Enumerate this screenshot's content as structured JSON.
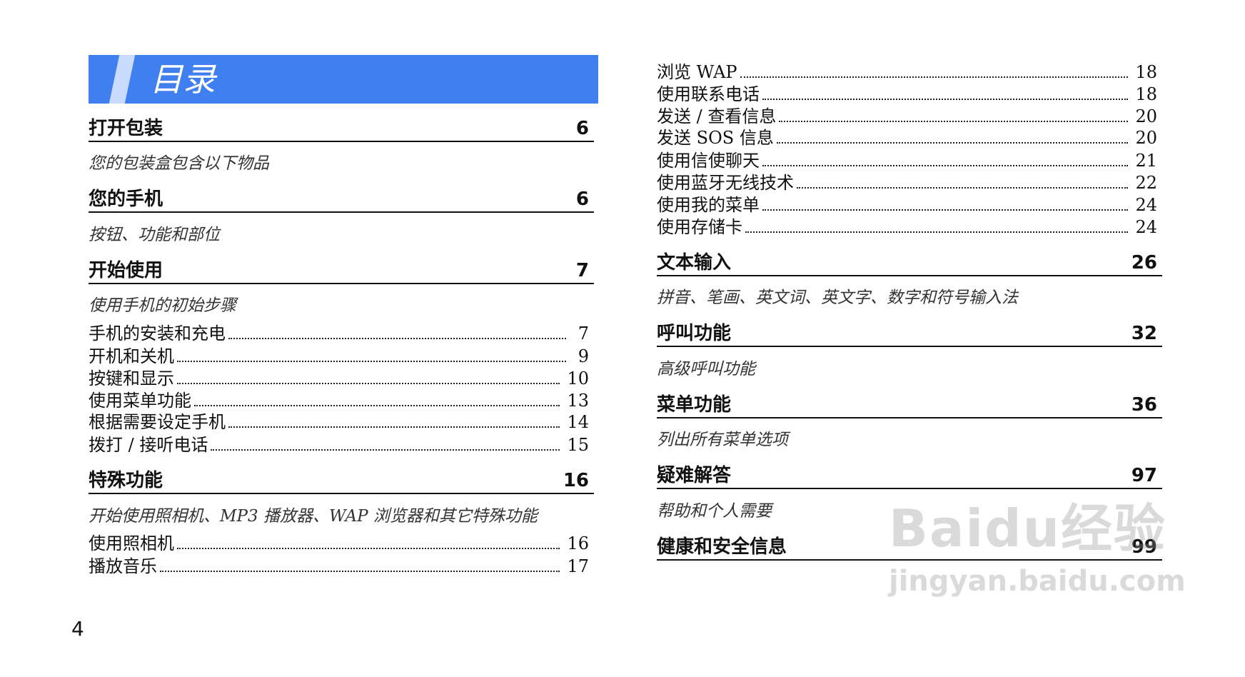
{
  "banner": {
    "title": "目录",
    "color": "#3f7ff0"
  },
  "left": [
    {
      "type": "head",
      "label": "打开包装",
      "page": "6"
    },
    {
      "type": "ital",
      "label": "您的包装盒包含以下物品"
    },
    {
      "type": "head",
      "label": "您的手机",
      "page": "6"
    },
    {
      "type": "ital",
      "label": "按钮、功能和部位"
    },
    {
      "type": "head",
      "label": "开始使用",
      "page": "7"
    },
    {
      "type": "ital",
      "label": "使用手机的初始步骤"
    },
    {
      "type": "entry",
      "label": "手机的安装和充电",
      "page": "7"
    },
    {
      "type": "entry",
      "label": "开机和关机",
      "page": "9"
    },
    {
      "type": "entry",
      "label": "按键和显示",
      "page": "10"
    },
    {
      "type": "entry",
      "label": "使用菜单功能",
      "page": "13"
    },
    {
      "type": "entry",
      "label": "根据需要设定手机",
      "page": "14"
    },
    {
      "type": "entry",
      "label": "拨打 / 接听电话",
      "page": "15"
    },
    {
      "type": "head",
      "label": "特殊功能",
      "page": "16"
    },
    {
      "type": "ital",
      "label": "开始使用照相机、MP3 播放器、WAP 浏览器和其它特殊功能"
    },
    {
      "type": "entry",
      "label": "使用照相机",
      "page": "16"
    },
    {
      "type": "entry",
      "label": "播放音乐",
      "page": "17"
    }
  ],
  "right": [
    {
      "type": "entry",
      "label": "浏览 WAP",
      "page": "18"
    },
    {
      "type": "entry",
      "label": "使用联系电话",
      "page": "18"
    },
    {
      "type": "entry",
      "label": "发送 / 查看信息",
      "page": "20"
    },
    {
      "type": "entry",
      "label": "发送 SOS 信息",
      "page": "20"
    },
    {
      "type": "entry",
      "label": "使用信使聊天",
      "page": "21"
    },
    {
      "type": "entry",
      "label": "使用蓝牙无线技术",
      "page": "22"
    },
    {
      "type": "entry",
      "label": "使用我的菜单",
      "page": "24"
    },
    {
      "type": "entry",
      "label": "使用存储卡",
      "page": "24"
    },
    {
      "type": "head",
      "label": "文本输入",
      "page": "26"
    },
    {
      "type": "ital",
      "label": "拼音、笔画、英文词、英文字、数字和符号输入法"
    },
    {
      "type": "head",
      "label": "呼叫功能",
      "page": "32"
    },
    {
      "type": "ital",
      "label": "高级呼叫功能"
    },
    {
      "type": "head",
      "label": "菜单功能",
      "page": "36"
    },
    {
      "type": "ital",
      "label": "列出所有菜单选项"
    },
    {
      "type": "head",
      "label": "疑难解答",
      "page": "97"
    },
    {
      "type": "ital",
      "label": "帮助和个人需要"
    },
    {
      "type": "head",
      "label": "健康和安全信息",
      "page": "99"
    }
  ],
  "page_number": "4",
  "watermark": {
    "logo": "Baidu经验",
    "url": "jingyan.baidu.com"
  }
}
